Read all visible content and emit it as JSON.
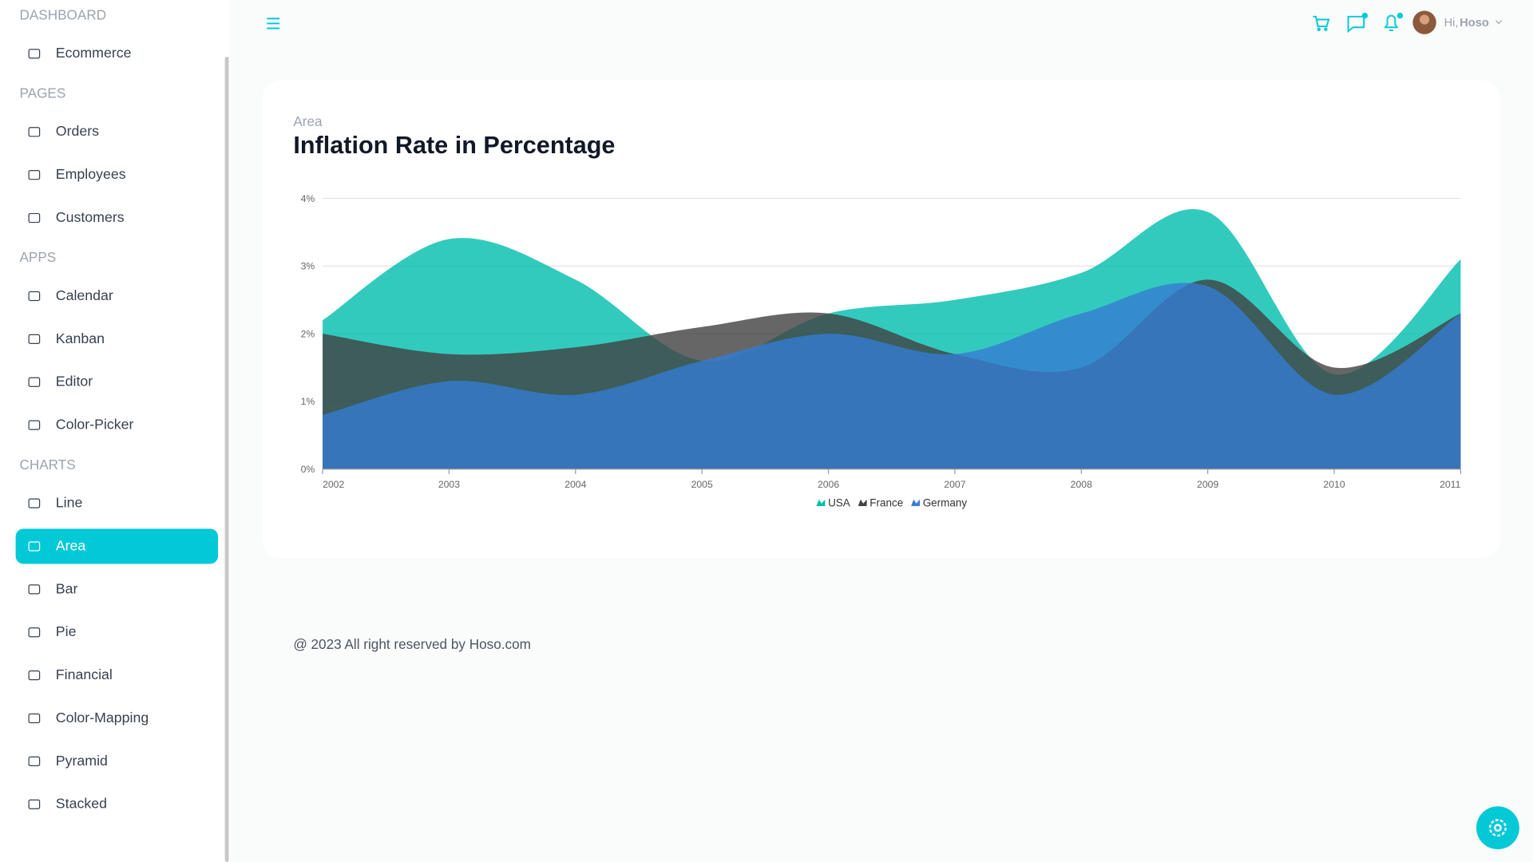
{
  "sidebar": {
    "sections": [
      {
        "title": "DASHBOARD",
        "items": [
          "Ecommerce"
        ]
      },
      {
        "title": "PAGES",
        "items": [
          "Orders",
          "Employees",
          "Customers"
        ]
      },
      {
        "title": "APPS",
        "items": [
          "Calendar",
          "Kanban",
          "Editor",
          "Color-Picker"
        ]
      },
      {
        "title": "CHARTS",
        "items": [
          "Line",
          "Area",
          "Bar",
          "Pie",
          "Financial",
          "Color-Mapping",
          "Pyramid",
          "Stacked"
        ]
      }
    ],
    "active": [
      3,
      1
    ]
  },
  "header": {
    "greeting": "Hi,",
    "user": "Hoso"
  },
  "chart_data": {
    "type": "area",
    "subtitle": "Area",
    "title": "Inflation Rate in Percentage",
    "x": [
      2002,
      2003,
      2004,
      2005,
      2006,
      2007,
      2008,
      2009,
      2010,
      2011
    ],
    "xlim": [
      2002,
      2011
    ],
    "xticks": [
      2002,
      2003,
      2004,
      2005,
      2006,
      2007,
      2008,
      2009,
      2010,
      2011
    ],
    "ylim": [
      0,
      4
    ],
    "yticks": [
      {
        "value": 0,
        "label": "0%"
      },
      {
        "value": 1,
        "label": "1%"
      },
      {
        "value": 2,
        "label": "2%"
      },
      {
        "value": 3,
        "label": "3%"
      },
      {
        "value": 4,
        "label": "4%"
      }
    ],
    "grid": true,
    "opacity": 0.8,
    "legend": "bottom",
    "series": [
      {
        "name": "USA",
        "color": "#00bdae",
        "values": [
          2.2,
          3.4,
          2.8,
          1.6,
          2.3,
          2.5,
          2.9,
          3.8,
          1.4,
          3.1
        ]
      },
      {
        "name": "France",
        "color": "#404041",
        "values": [
          2.0,
          1.7,
          1.8,
          2.1,
          2.3,
          1.7,
          1.5,
          2.8,
          1.5,
          2.3
        ]
      },
      {
        "name": "Germany",
        "color": "#357cd2",
        "values": [
          0.8,
          1.3,
          1.1,
          1.6,
          2.0,
          1.7,
          2.3,
          2.7,
          1.1,
          2.3
        ]
      }
    ]
  },
  "footer": "@ 2023 All right reserved by Hoso.com"
}
